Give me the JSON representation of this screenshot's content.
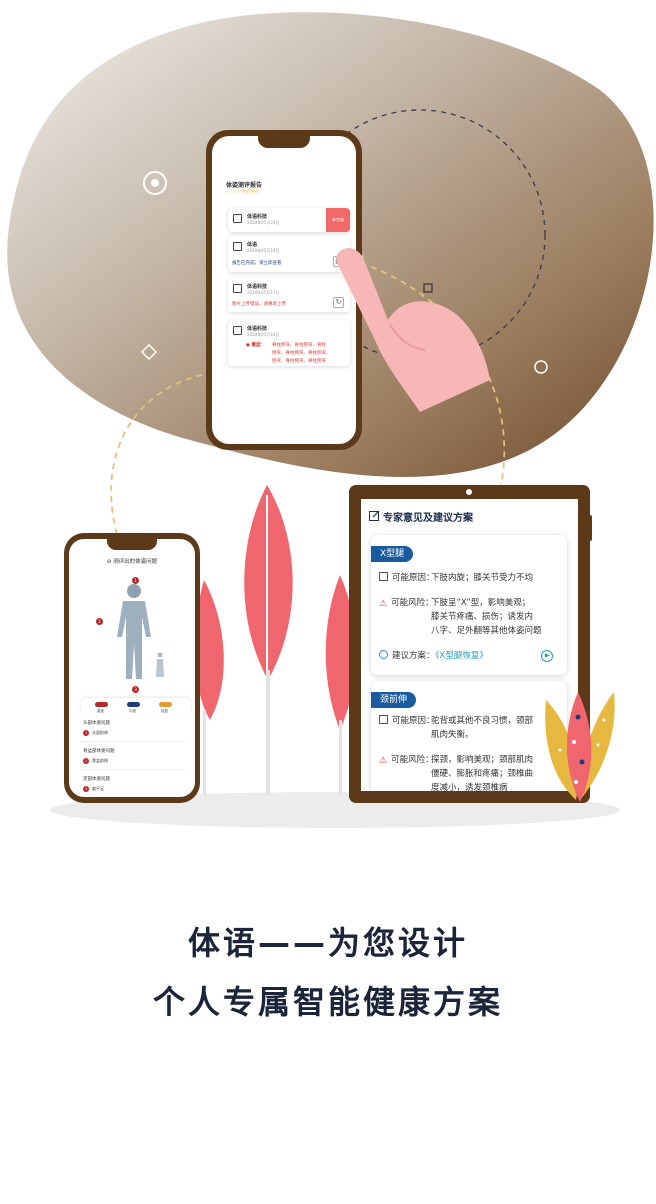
{
  "headline": {
    "line1": "体语——为您设计",
    "line2": "个人专属智能健康方案"
  },
  "report_phone": {
    "title": "体姿测评报告",
    "subtitle": "☆☆☆☆ 完全评估",
    "cards": [
      {
        "name": "体语科技",
        "date": "2020年05月20日",
        "status": "未完成"
      },
      {
        "name": "体语",
        "date": "2020年05月18日",
        "message": "报告已完成，请立即查看"
      },
      {
        "name": "体语科技",
        "date": "2020年05月17日",
        "message": "图片上传错误，请重新上传"
      },
      {
        "name": "体语科技",
        "date": "2020年05月16日",
        "severity": "重度：",
        "line1": "脊柱侧弯、脊柱侧弯、脊柱",
        "line2": "侧弯、脊柱侧弯、脊柱侧弯、",
        "line3": "侧弯、脊柱侧弯、脊柱侧弯"
      }
    ]
  },
  "posture_phone": {
    "title": "测评出的体姿问题",
    "markers": [
      "1",
      "2",
      "3"
    ],
    "legend": [
      "重度",
      "中度",
      "轻度"
    ],
    "groups": [
      {
        "title": "头部体姿问题",
        "item": "头部前伸",
        "num": "1"
      },
      {
        "title": "骨盆部体姿问题",
        "item": "骨盆前倾",
        "num": "2"
      },
      {
        "title": "足部体姿问题",
        "item": "扁平足",
        "num": "3"
      }
    ]
  },
  "tablet": {
    "title": "专家意见及建议方案",
    "cards": [
      {
        "tag": "X型腿",
        "cause_label": "可能原因：",
        "cause": "下肢内旋；膝关节受力不均",
        "risk_label": "可能风险：",
        "risk": "下肢呈“X”型，影响美观；\n膝关节疼痛、损伤；诱发内\n八字、足外翻等其他体姿问题",
        "plan_label": "建议方案：",
        "plan": "《X型腿恢复》"
      },
      {
        "tag": "颈前伸",
        "cause_label": "可能原因：",
        "cause": "驼背或其他不良习惯，颈部\n肌肉失衡。",
        "risk_label": "可能风险：",
        "risk": "探颈，影响美观；颈部肌肉\n僵硬、膨胀和疼痛；颈椎曲\n度减小，诱发颈椎病"
      }
    ]
  },
  "colors": {
    "brown": "#5b3919",
    "navy": "#1b2438",
    "accent_blue": "#1a5a9e",
    "leaf_pink": "#f0666e",
    "leaf_yellow": "#e6b83f",
    "hand_pink": "#f7b7b7"
  }
}
